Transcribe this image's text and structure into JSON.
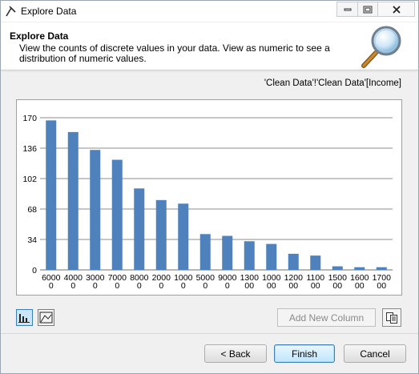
{
  "window": {
    "title": "Explore Data"
  },
  "header": {
    "title": "Explore Data",
    "description": "View the counts of discrete values in your data.  View as numeric to see a distribution of numeric values."
  },
  "source_label": "'Clean Data'!'Clean Data'[Income]",
  "chart_data": {
    "type": "bar",
    "categories": [
      "60000",
      "40000",
      "30000",
      "70000",
      "80000",
      "20000",
      "10000",
      "50000",
      "90000",
      "130000",
      "100000",
      "120000",
      "110000",
      "150000",
      "160000",
      "170000"
    ],
    "category_lines": [
      [
        "6000",
        "0"
      ],
      [
        "4000",
        "0"
      ],
      [
        "3000",
        "0"
      ],
      [
        "7000",
        "0"
      ],
      [
        "8000",
        "0"
      ],
      [
        "2000",
        "0"
      ],
      [
        "1000",
        "0"
      ],
      [
        "5000",
        "0"
      ],
      [
        "9000",
        "0"
      ],
      [
        "1300",
        "00"
      ],
      [
        "1000",
        "00"
      ],
      [
        "1200",
        "00"
      ],
      [
        "1100",
        "00"
      ],
      [
        "1500",
        "00"
      ],
      [
        "1600",
        "00"
      ],
      [
        "1700",
        "00"
      ]
    ],
    "values": [
      167,
      154,
      134,
      123,
      91,
      78,
      74,
      40,
      38,
      32,
      29,
      18,
      16,
      4,
      3,
      3
    ],
    "yticks": [
      "0",
      "34",
      "68",
      "102",
      "136",
      "170"
    ],
    "ylim": [
      0,
      170
    ],
    "grid": true,
    "bar_color": "#4f81bd"
  },
  "toolbar": {
    "add_column_label": "Add New Column",
    "view_bar_icon": "bar-chart-icon",
    "view_area_icon": "area-chart-icon",
    "copy_icon": "copy-icon"
  },
  "buttons": {
    "back": "< Back",
    "finish": "Finish",
    "cancel": "Cancel"
  }
}
